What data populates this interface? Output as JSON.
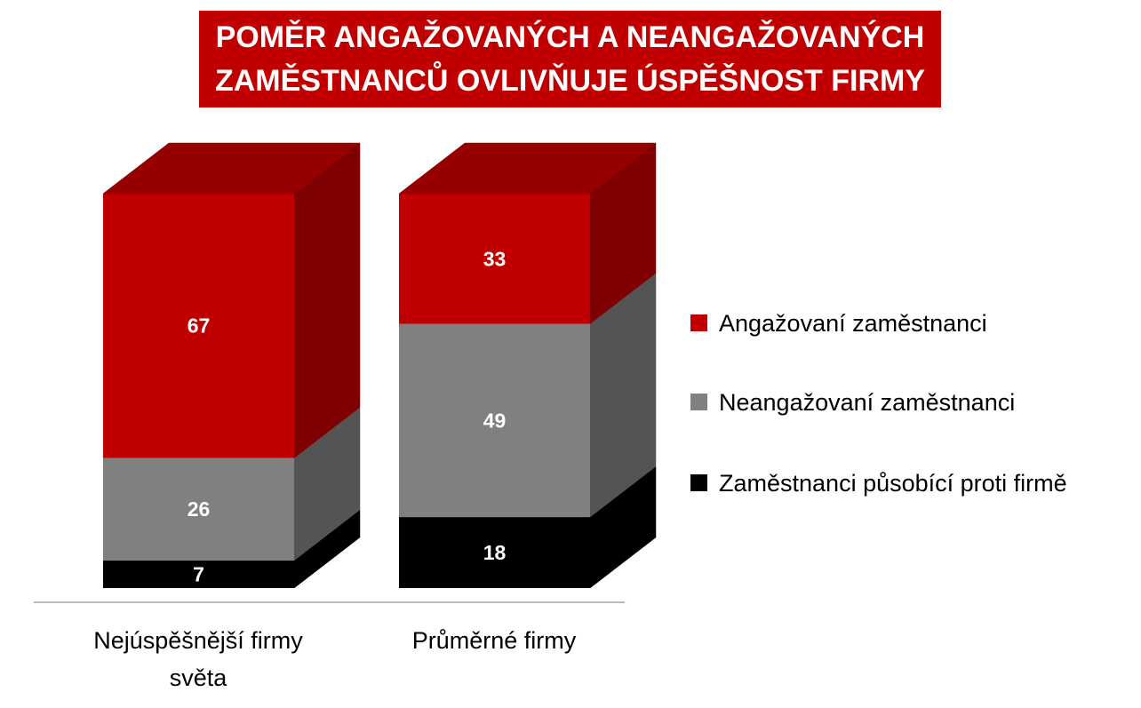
{
  "chart_data": {
    "type": "bar",
    "stacked": true,
    "three_d": true,
    "title": "POMĚR ANGAŽOVANÝCH A NEANGAŽOVANÝCH ZAMĚSTNANCŮ OVLIVŇUJE ÚSPĚŠNOST FIRMY",
    "title_lines": [
      "POMĚR ANGAŽOVANÝCH A NEANGAŽOVANÝCH",
      "ZAMĚSTNANCŮ OVLIVŇUJE ÚSPĚŠNOST FIRMY"
    ],
    "categories": [
      [
        "Nejúspěšnější firmy",
        "světa"
      ],
      [
        "Průměrné firmy"
      ]
    ],
    "series": [
      {
        "name": "Zaměstnanci působící proti firmě",
        "values": [
          7,
          18
        ],
        "color": "#000000"
      },
      {
        "name": "Neangažovaní zaměstnanci",
        "values": [
          26,
          49
        ],
        "color": "#808080"
      },
      {
        "name": "Angažovaní zaměstnanci",
        "values": [
          67,
          33
        ],
        "color": "#c00000"
      }
    ],
    "legend_order": [
      "Angažovaní zaměstnanci",
      "Neangažovaní zaměstnanci",
      "Zaměstnanci působící proti firmě"
    ],
    "legend_position": "right",
    "ylim": [
      0,
      100
    ],
    "grid": false,
    "data_labels": true
  }
}
